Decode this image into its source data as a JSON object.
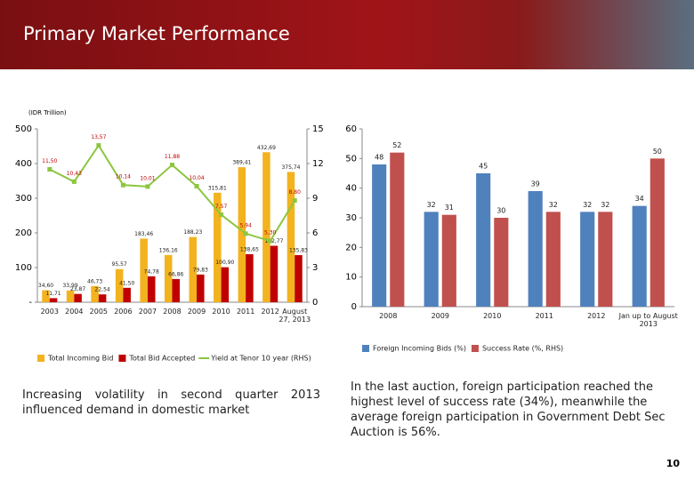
{
  "header": {
    "title": "Primary Market Performance"
  },
  "chart_data": [
    {
      "type": "bar",
      "y_label": "(IDR Trillion)",
      "categories": [
        "2003",
        "2004",
        "2005",
        "2006",
        "2007",
        "2008",
        "2009",
        "2010",
        "2011",
        "2012",
        "August 27, 2013"
      ],
      "series": [
        {
          "name": "Total Incoming Bid",
          "color": "#f2b31f",
          "values": [
            34.6,
            33.99,
            46.73,
            95.57,
            183.46,
            136.16,
            188.23,
            315.81,
            389.41,
            432.69,
            375.74
          ],
          "value_labels": [
            "34,60",
            "33,99",
            "46,73",
            "95,57",
            "183,46",
            "136,16",
            "188,23",
            "315,81",
            "389,41",
            "432,69",
            "375,74"
          ]
        },
        {
          "name": "Total Bid Accepted",
          "color": "#c00000",
          "values": [
            11.71,
            23.87,
            22.54,
            41.5,
            74.78,
            66.86,
            79.83,
            100.9,
            138.65,
            162.77,
            135.83
          ],
          "value_labels": [
            "11,71",
            "23,87",
            "22,54",
            "41,50",
            "74,78",
            "66,86",
            "79,83",
            "100,90",
            "138,65",
            "162,77",
            "135,83"
          ]
        },
        {
          "name": "Yield at Tenor 10 year (RHS)",
          "type": "line",
          "axis": "y2",
          "color": "#8cc63f",
          "values": [
            11.5,
            10.43,
            13.57,
            10.14,
            10.01,
            11.88,
            10.04,
            7.57,
            5.94,
            5.3,
            8.8
          ],
          "value_labels": [
            "11,50",
            "10,43",
            "13,57",
            "10,14",
            "10,01",
            "11,88",
            "10,04",
            "7,57",
            "5,94",
            "5,30",
            "8,80"
          ]
        }
      ],
      "ylim": [
        0,
        500
      ],
      "yticks": [
        {
          "value": 0,
          "label": "-"
        },
        100,
        200,
        300,
        400,
        500
      ],
      "y2lim": [
        0,
        15
      ],
      "y2ticks": [
        0,
        3,
        6,
        9,
        12,
        15
      ],
      "legend": "bottom",
      "grid": false
    },
    {
      "type": "bar",
      "categories": [
        "2008",
        "2009",
        "2010",
        "2011",
        "2012",
        "Jan up to August 2013"
      ],
      "series": [
        {
          "name": "Foreign Incoming Bids (%)",
          "color": "#4f81bd",
          "values": [
            48,
            32,
            45,
            39,
            32,
            34
          ]
        },
        {
          "name": "Success Rate (%, RHS)",
          "color": "#c0504d",
          "values": [
            52,
            31,
            30,
            32,
            32,
            50
          ]
        }
      ],
      "ylim": [
        0,
        60
      ],
      "yticks": [
        0,
        10,
        20,
        30,
        40,
        50,
        60
      ],
      "legend": "bottom",
      "grid": false
    }
  ],
  "captions": [
    "Increasing volatility in second quarter 2013 influenced demand in domestic market",
    "In the last auction, foreign participation reached the highest level of success rate (34%), meanwhile the average foreign participation in Government Debt Sec Auction is 56%."
  ],
  "page_number": "10"
}
